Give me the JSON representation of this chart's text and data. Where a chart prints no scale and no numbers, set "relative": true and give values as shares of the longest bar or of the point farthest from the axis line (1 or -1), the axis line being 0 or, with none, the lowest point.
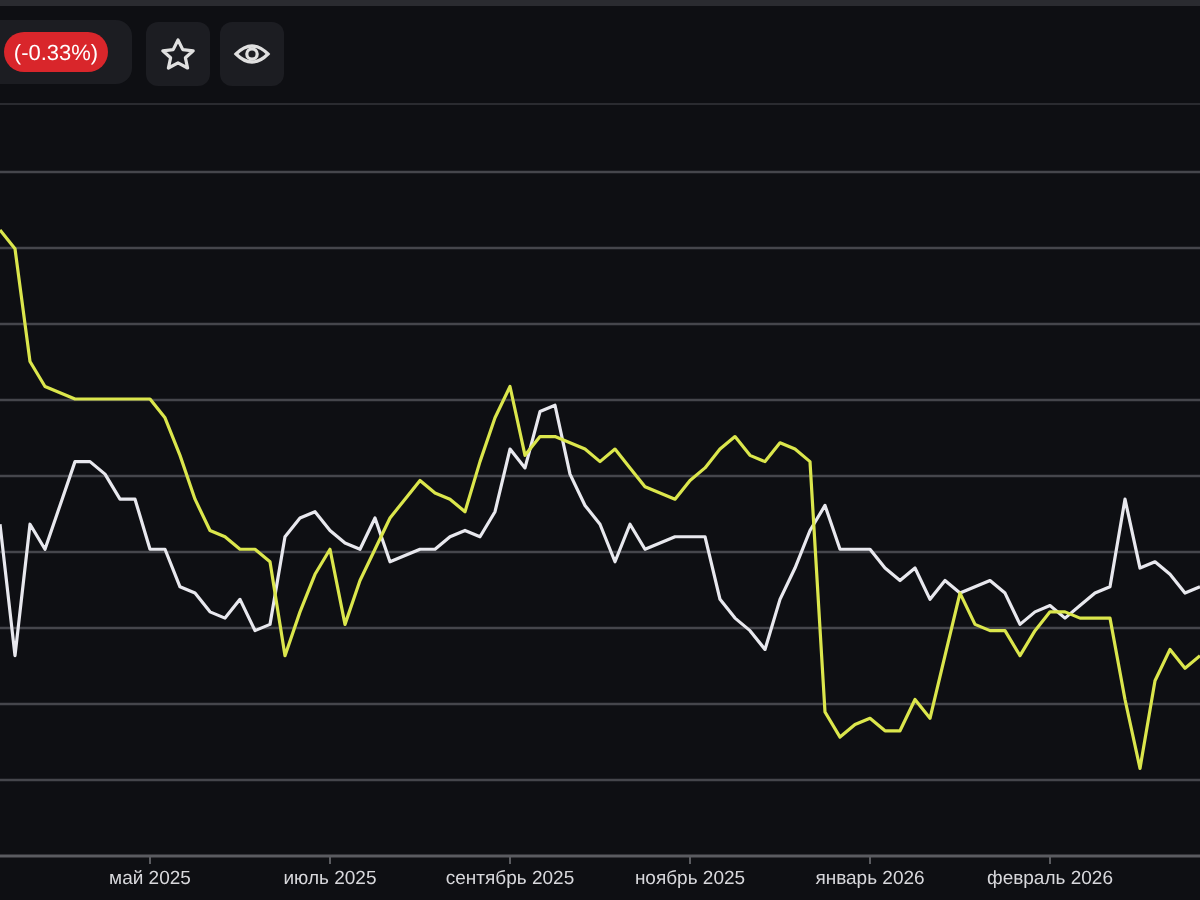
{
  "chart_data": {
    "type": "line",
    "relative": true,
    "grid": "y",
    "marker": "none",
    "annotations": [
      "(-0.33%)"
    ],
    "categories": [
      null,
      null,
      null,
      null,
      null,
      null,
      null,
      null,
      null,
      null,
      "май 2025",
      null,
      null,
      null,
      null,
      null,
      null,
      null,
      null,
      null,
      null,
      null,
      "июль 2025",
      null,
      null,
      null,
      null,
      null,
      null,
      null,
      null,
      null,
      null,
      null,
      "сентябрь 2025",
      null,
      null,
      null,
      null,
      null,
      null,
      null,
      null,
      null,
      null,
      null,
      "ноябрь 2025",
      null,
      null,
      null,
      null,
      null,
      null,
      null,
      null,
      null,
      null,
      null,
      "январь 2026",
      null,
      null,
      null,
      null,
      null,
      null,
      null,
      null,
      null,
      null,
      null,
      "февраль 2026",
      null,
      null,
      null,
      null,
      null,
      null,
      null,
      null,
      null,
      null
    ],
    "series": [
      {
        "color": "#e8e8ee",
        "values": [
          0.53,
          0.32,
          0.53,
          0.49,
          0.56,
          0.63,
          0.63,
          0.61,
          0.57,
          0.57,
          0.49,
          0.49,
          0.43,
          0.42,
          0.39,
          0.38,
          0.41,
          0.36,
          0.37,
          0.51,
          0.54,
          0.55,
          0.52,
          0.5,
          0.49,
          0.54,
          0.47,
          0.48,
          0.49,
          0.49,
          0.51,
          0.52,
          0.51,
          0.55,
          0.65,
          0.62,
          0.71,
          0.72,
          0.61,
          0.56,
          0.53,
          0.47,
          0.53,
          0.49,
          0.5,
          0.51,
          0.51,
          0.51,
          0.41,
          0.38,
          0.36,
          0.33,
          0.41,
          0.46,
          0.52,
          0.56,
          0.49,
          0.49,
          0.49,
          0.46,
          0.44,
          0.46,
          0.41,
          0.44,
          0.42,
          0.43,
          0.44,
          0.42,
          0.37,
          0.39,
          0.4,
          0.38,
          0.4,
          0.42,
          0.43,
          0.57,
          0.46,
          0.47,
          0.45,
          0.42,
          0.43
        ]
      },
      {
        "color": "#dbe64c",
        "values": [
          1,
          0.97,
          0.79,
          0.75,
          0.74,
          0.73,
          0.73,
          0.73,
          0.73,
          0.73,
          0.73,
          0.7,
          0.64,
          0.57,
          0.52,
          0.51,
          0.49,
          0.49,
          0.47,
          0.32,
          0.39,
          0.45,
          0.49,
          0.37,
          0.44,
          0.49,
          0.54,
          0.57,
          0.6,
          0.58,
          0.57,
          0.55,
          0.63,
          0.7,
          0.75,
          0.64,
          0.67,
          0.67,
          0.66,
          0.65,
          0.63,
          0.65,
          0.62,
          0.59,
          0.58,
          0.57,
          0.6,
          0.62,
          0.65,
          0.67,
          0.64,
          0.63,
          0.66,
          0.65,
          0.63,
          0.23,
          0.19,
          0.21,
          0.22,
          0.2,
          0.2,
          0.25,
          0.22,
          0.32,
          0.42,
          0.37,
          0.36,
          0.36,
          0.32,
          0.36,
          0.39,
          0.39,
          0.38,
          0.38,
          0.38,
          0.25,
          0.14,
          0.28,
          0.33,
          0.3,
          0.32
        ]
      }
    ]
  }
}
